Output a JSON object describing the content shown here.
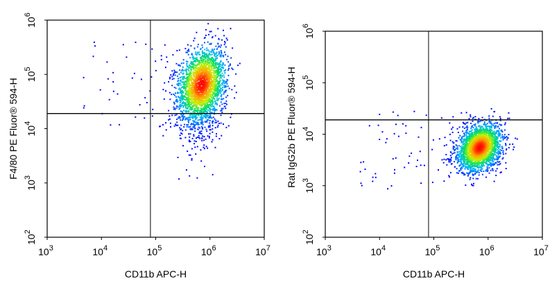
{
  "chart_data": [
    {
      "type": "scatter",
      "title": "",
      "xlabel": "CD11b APC-H",
      "ylabel": "F4/80 PE Fluor® 594-H",
      "xscale": "log",
      "yscale": "log",
      "xlim": [
        1000,
        10000000
      ],
      "ylim": [
        100,
        1000000
      ],
      "x_ticks": [
        {
          "base": "10",
          "exp": "3",
          "value": 1000
        },
        {
          "base": "10",
          "exp": "4",
          "value": 10000
        },
        {
          "base": "10",
          "exp": "5",
          "value": 100000
        },
        {
          "base": "10",
          "exp": "6",
          "value": 1000000
        },
        {
          "base": "10",
          "exp": "7",
          "value": 10000000
        }
      ],
      "y_ticks": [
        {
          "base": "10",
          "exp": "2",
          "value": 100
        },
        {
          "base": "10",
          "exp": "3",
          "value": 1000
        },
        {
          "base": "10",
          "exp": "4",
          "value": 10000
        },
        {
          "base": "10",
          "exp": "5",
          "value": 100000
        },
        {
          "base": "10",
          "exp": "6",
          "value": 1000000
        }
      ],
      "gate_x": 80000,
      "gate_y": 19000,
      "population": {
        "center": [
          700000,
          65000
        ],
        "spread_log_x": 0.22,
        "spread_log_y": 0.33,
        "correlation": 0.35,
        "tail_toward_low_y": true
      },
      "colormap": [
        "#0000ff",
        "#00b4ff",
        "#00e060",
        "#c8f000",
        "#ffa000",
        "#ff0000"
      ],
      "grid": false
    },
    {
      "type": "scatter",
      "title": "",
      "xlabel": "CD11b APC-H",
      "ylabel": "Rat IgG2b PE Fluor® 594-H",
      "xscale": "log",
      "yscale": "log",
      "xlim": [
        1000,
        10000000
      ],
      "ylim": [
        100,
        1000000
      ],
      "x_ticks": [
        {
          "base": "10",
          "exp": "3",
          "value": 1000
        },
        {
          "base": "10",
          "exp": "4",
          "value": 10000
        },
        {
          "base": "10",
          "exp": "5",
          "value": 100000
        },
        {
          "base": "10",
          "exp": "6",
          "value": 1000000
        },
        {
          "base": "10",
          "exp": "7",
          "value": 10000000
        }
      ],
      "y_ticks": [
        {
          "base": "10",
          "exp": "2",
          "value": 100
        },
        {
          "base": "10",
          "exp": "3",
          "value": 1000
        },
        {
          "base": "10",
          "exp": "4",
          "value": 10000
        },
        {
          "base": "10",
          "exp": "5",
          "value": 100000
        },
        {
          "base": "10",
          "exp": "6",
          "value": 1000000
        }
      ],
      "gate_x": 80000,
      "gate_y": 19000,
      "population": {
        "center": [
          700000,
          5500
        ],
        "spread_log_x": 0.2,
        "spread_log_y": 0.22,
        "correlation": 0.3,
        "tail_toward_low_y": false
      },
      "colormap": [
        "#0000ff",
        "#00b4ff",
        "#00e060",
        "#c8f000",
        "#ffa000",
        "#ff0000"
      ],
      "grid": false
    }
  ]
}
